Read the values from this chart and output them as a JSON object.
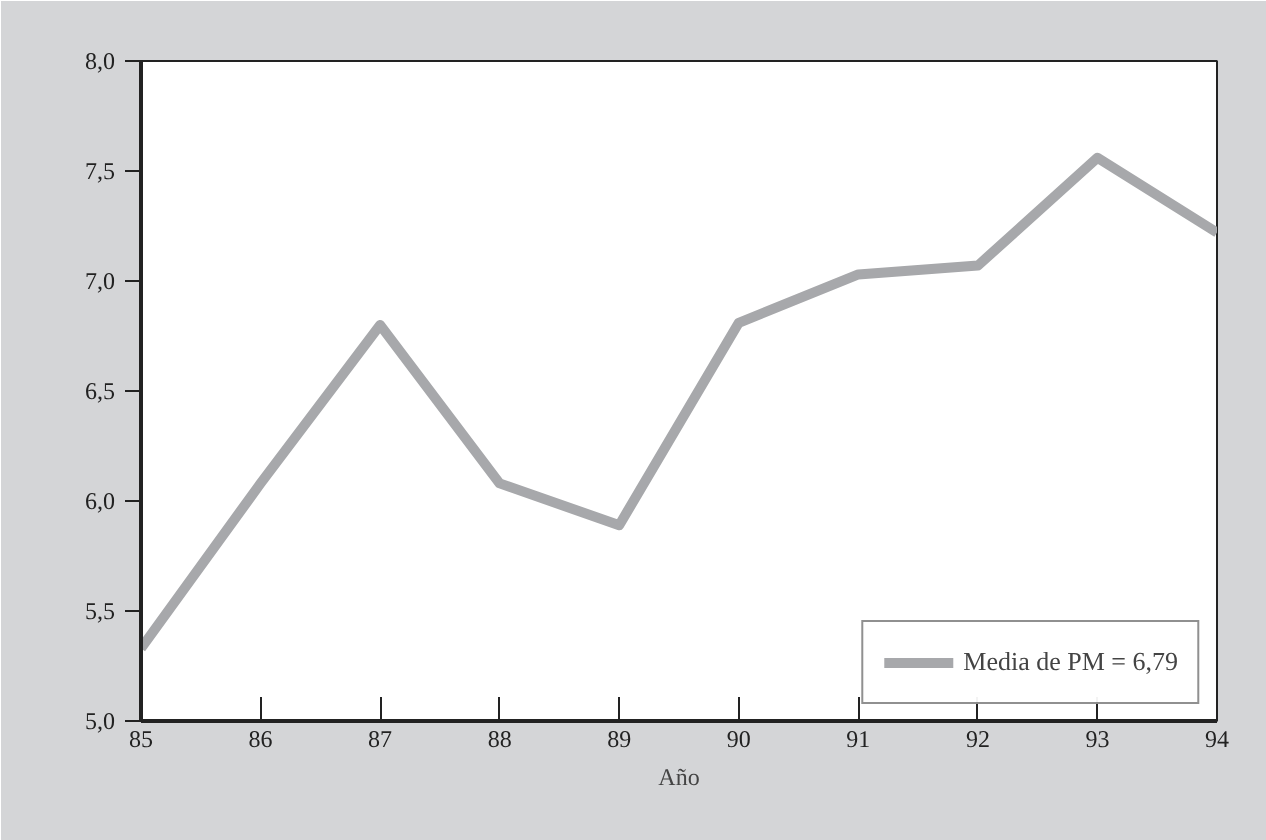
{
  "chart_data": {
    "type": "line",
    "xlabel": "Año",
    "x": [
      85,
      86,
      87,
      88,
      89,
      90,
      91,
      92,
      93,
      94
    ],
    "series": [
      {
        "name": "Media de PM = 6,79",
        "color": "#a7a8ab",
        "values": [
          5.33,
          6.08,
          6.8,
          6.08,
          5.89,
          6.81,
          7.03,
          7.07,
          7.56,
          7.22
        ]
      }
    ],
    "xlim": [
      85,
      94
    ],
    "xticks": [
      85,
      86,
      87,
      88,
      89,
      90,
      91,
      92,
      93,
      94
    ],
    "ylim": [
      5.0,
      8.0
    ],
    "yticks": [
      {
        "value": 5.0,
        "label": "5,0"
      },
      {
        "value": 5.5,
        "label": "5,5"
      },
      {
        "value": 6.0,
        "label": "6,0"
      },
      {
        "value": 6.5,
        "label": "6,5"
      },
      {
        "value": 7.0,
        "label": "7,0"
      },
      {
        "value": 7.5,
        "label": "7,5"
      },
      {
        "value": 8.0,
        "label": "8,0"
      }
    ],
    "grid": false,
    "legend": "bottom right",
    "marker": "none",
    "line_style": "solid"
  }
}
